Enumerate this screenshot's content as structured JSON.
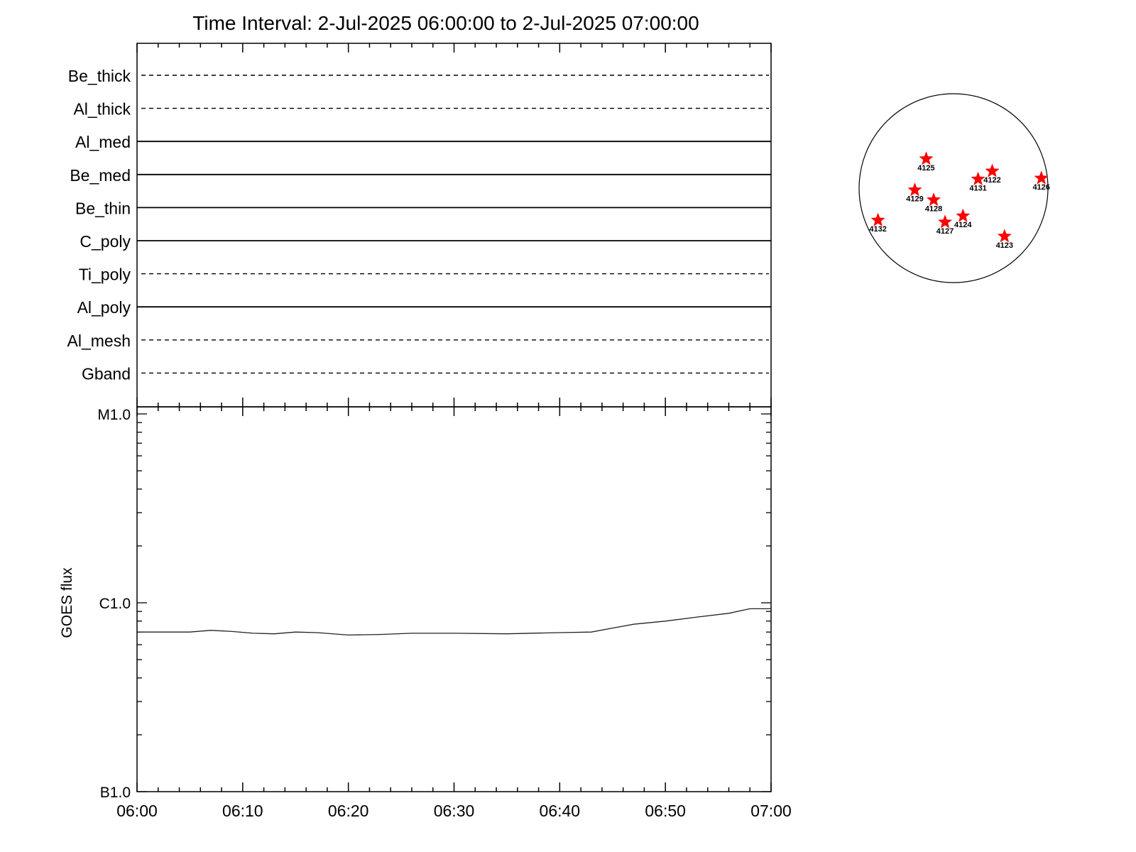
{
  "title": "Time Interval:  2-Jul-2025 06:00:00 to  2-Jul-2025 07:00:00",
  "colors": {
    "axis": "#000000",
    "star": "#ff0000",
    "line": "#222222"
  },
  "chart_data": [
    {
      "type": "line",
      "panel": "filter-status",
      "filters": [
        {
          "name": "Be_thick",
          "style": "dashed"
        },
        {
          "name": "Al_thick",
          "style": "dashed"
        },
        {
          "name": "Al_med",
          "style": "solid"
        },
        {
          "name": "Be_med",
          "style": "solid"
        },
        {
          "name": "Be_thin",
          "style": "solid"
        },
        {
          "name": "C_poly",
          "style": "solid"
        },
        {
          "name": "Ti_poly",
          "style": "dashed"
        },
        {
          "name": "Al_poly",
          "style": "solid"
        },
        {
          "name": "Al_mesh",
          "style": "dashed"
        },
        {
          "name": "Gband",
          "style": "dashed"
        }
      ]
    },
    {
      "type": "line",
      "panel": "goes-flux",
      "ylabel": "GOES flux",
      "yscale": "log",
      "ylim": [
        1e-07,
        1e-05
      ],
      "ytick_labels": [
        {
          "value": 1e-05,
          "label": "M1.0"
        },
        {
          "value": 1e-06,
          "label": "C1.0"
        },
        {
          "value": 1e-07,
          "label": "B1.0"
        }
      ],
      "xlim_minutes": [
        0,
        60
      ],
      "xtick_labels": [
        "06:00",
        "06:10",
        "06:20",
        "06:30",
        "06:40",
        "06:50",
        "07:00"
      ],
      "series": [
        {
          "points": [
            [
              "06:00",
              7e-07
            ],
            [
              "06:05",
              7e-07
            ],
            [
              "06:07",
              7.15e-07
            ],
            [
              "06:09",
              7.05e-07
            ],
            [
              "06:11",
              6.9e-07
            ],
            [
              "06:13",
              6.85e-07
            ],
            [
              "06:15",
              7e-07
            ],
            [
              "06:17",
              6.95e-07
            ],
            [
              "06:20",
              6.75e-07
            ],
            [
              "06:23",
              6.8e-07
            ],
            [
              "06:26",
              6.9e-07
            ],
            [
              "06:30",
              6.9e-07
            ],
            [
              "06:35",
              6.85e-07
            ],
            [
              "06:40",
              6.95e-07
            ],
            [
              "06:43",
              7e-07
            ],
            [
              "06:45",
              7.35e-07
            ],
            [
              "06:47",
              7.7e-07
            ],
            [
              "06:50",
              8e-07
            ],
            [
              "06:53",
              8.4e-07
            ],
            [
              "06:56",
              8.8e-07
            ],
            [
              "06:58",
              9.3e-07
            ],
            [
              "07:00",
              9.3e-07
            ]
          ]
        }
      ]
    },
    {
      "type": "scatter",
      "panel": "solar-disk",
      "xlim": [
        -1000,
        1000
      ],
      "ylim": [
        -1000,
        1000
      ],
      "regions": [
        {
          "label": "4125",
          "x": -290,
          "y": 310
        },
        {
          "label": "4122",
          "x": 410,
          "y": 180
        },
        {
          "label": "4131",
          "x": 260,
          "y": 95
        },
        {
          "label": "4126",
          "x": 930,
          "y": 105
        },
        {
          "label": "4129",
          "x": -410,
          "y": -20
        },
        {
          "label": "4128",
          "x": -210,
          "y": -125
        },
        {
          "label": "4132",
          "x": -800,
          "y": -340
        },
        {
          "label": "4124",
          "x": 100,
          "y": -295
        },
        {
          "label": "4127",
          "x": -90,
          "y": -360
        },
        {
          "label": "4123",
          "x": 540,
          "y": -510
        }
      ]
    }
  ]
}
